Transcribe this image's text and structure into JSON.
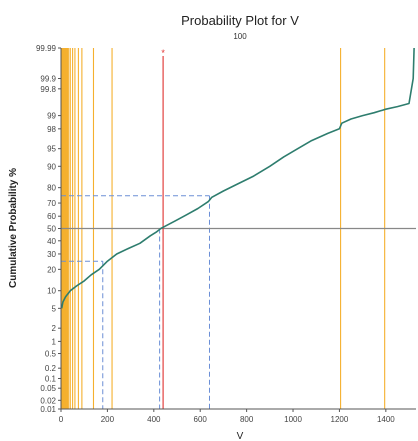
{
  "chart_data": {
    "type": "line",
    "title": "Probability Plot for V",
    "subtitle": "100",
    "xlabel": "V",
    "ylabel": "Cumulative Probability %",
    "xlim": [
      0,
      1530
    ],
    "ylim": [
      0.01,
      99.99
    ],
    "y_scale": "normal-probability",
    "x_ticks": [
      0,
      200,
      400,
      600,
      800,
      1000,
      1200,
      1400
    ],
    "y_ticks": [
      0.01,
      0.02,
      0.05,
      0.1,
      0.2,
      0.5,
      1,
      2,
      5,
      10,
      20,
      30,
      40,
      50,
      60,
      70,
      80,
      90,
      95,
      98,
      99,
      99.8,
      99.9,
      99.99
    ],
    "series": [
      {
        "color": "#2e7d6e",
        "x": [
          3,
          8,
          20,
          40,
          70,
          100,
          130,
          165,
          200,
          240,
          290,
          340,
          385,
          410,
          430,
          450,
          490,
          540,
          590,
          635,
          650,
          700,
          760,
          830,
          900,
          960,
          1020,
          1080,
          1150,
          1200,
          1210,
          1250,
          1300,
          1350,
          1400,
          1450,
          1500,
          1518,
          1522
        ],
        "y": [
          5,
          6.5,
          8,
          10,
          12,
          14,
          17,
          20,
          25,
          30,
          34,
          38,
          44,
          47,
          50,
          52,
          56,
          61,
          66,
          71,
          74,
          78,
          82,
          86,
          90,
          93,
          95,
          96.5,
          97.5,
          98,
          98.5,
          98.8,
          99.0,
          99.15,
          99.3,
          99.4,
          99.5,
          99.9,
          99.99
        ]
      }
    ],
    "vertical_lines": {
      "color": "#f5b02e",
      "x": [
        2,
        5,
        8,
        11,
        14,
        17,
        20,
        24,
        28,
        33,
        40,
        50,
        60,
        75,
        90,
        140,
        220,
        1205,
        1395
      ]
    },
    "highlight_line": {
      "color": "#e0302e",
      "x": 440,
      "marker": "*"
    },
    "reference_line": {
      "color": "#888888",
      "y": 50
    },
    "percentile_guides": {
      "color": "#6b8fd6",
      "points": [
        {
          "p": 25,
          "x": 180
        },
        {
          "p": 50,
          "x": 425
        },
        {
          "p": 75,
          "x": 640
        }
      ]
    },
    "grid": false,
    "legend": "none"
  }
}
